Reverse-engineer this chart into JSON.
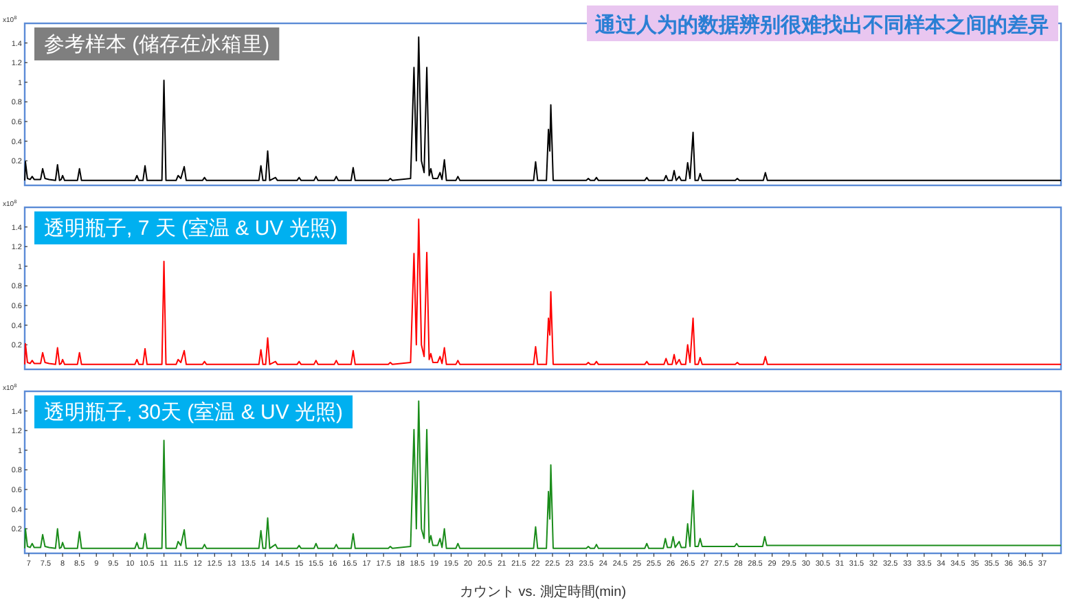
{
  "chart_data": [
    {
      "type": "line",
      "title": "参考样本 (储存在冰箱里)",
      "ylabel": "x10$^{8}$",
      "annotations": [
        "通过人为的数据辨别很难找出不同样本之间的差异"
      ],
      "xlim": [
        6.88,
        37.55
      ],
      "ylim": [
        -0.05,
        1.6
      ],
      "yticks": [
        0.2,
        0.4,
        0.6,
        0.8,
        1,
        1.2,
        1.4
      ],
      "tick_labels": "y",
      "grid": false,
      "series": [
        {
          "color": "#000000",
          "x": [
            6.88,
            6.9,
            6.96,
            7.04,
            7.1,
            7.16,
            7.35,
            7.41,
            7.48,
            7.6,
            7.79,
            7.85,
            7.91,
            7.96,
            8.0,
            8.06,
            8.44,
            8.5,
            8.56,
            10.14,
            10.2,
            10.26,
            10.38,
            10.44,
            10.5,
            10.94,
            11.0,
            11.06,
            11.36,
            11.42,
            11.5,
            11.6,
            11.66,
            12.14,
            12.2,
            12.26,
            13.81,
            13.87,
            13.93,
            14.01,
            14.07,
            14.13,
            14.3,
            14.36,
            14.94,
            15.0,
            15.06,
            15.44,
            15.5,
            15.56,
            16.04,
            16.1,
            16.16,
            16.54,
            16.6,
            16.66,
            17.64,
            17.7,
            17.76,
            18.3,
            18.4,
            18.47,
            18.54,
            18.62,
            18.7,
            18.78,
            18.85,
            18.9,
            18.96,
            19.1,
            19.17,
            19.23,
            19.3,
            19.36,
            19.64,
            19.7,
            19.76,
            21.94,
            22.0,
            22.06,
            22.32,
            22.38,
            22.42,
            22.45,
            22.52,
            23.5,
            23.56,
            23.62,
            23.74,
            23.8,
            23.86,
            25.23,
            25.29,
            25.35,
            25.8,
            25.86,
            25.92,
            26.04,
            26.1,
            26.16,
            26.25,
            26.31,
            26.44,
            26.5,
            26.57,
            26.66,
            26.72,
            26.81,
            26.87,
            26.93,
            27.91,
            27.97,
            28.03,
            28.74,
            28.8,
            28.86,
            37.55
          ],
          "values": [
            0,
            0.19,
            0.02,
            0.01,
            0.04,
            0.01,
            0.01,
            0.12,
            0.02,
            0.01,
            0,
            0.16,
            0,
            0.01,
            0.05,
            0,
            0,
            0.12,
            0,
            0,
            0.05,
            0,
            0,
            0.15,
            0,
            0,
            1.02,
            0,
            0,
            0.05,
            0.02,
            0.14,
            0,
            0,
            0.03,
            0,
            0,
            0.15,
            0,
            0,
            0.3,
            0,
            0.03,
            0,
            0,
            0.03,
            0,
            0,
            0.04,
            0,
            0,
            0.04,
            0,
            0,
            0.13,
            0,
            0,
            0.02,
            0,
            0.02,
            1.15,
            0.2,
            1.46,
            0.2,
            0.08,
            1.15,
            0.05,
            0.12,
            0.02,
            0.02,
            0.08,
            0.01,
            0.21,
            0,
            0,
            0.04,
            0,
            0,
            0.19,
            0,
            0,
            0.52,
            0.3,
            0.77,
            0,
            0,
            0.02,
            0,
            0,
            0.03,
            0,
            0,
            0.03,
            0,
            0,
            0.05,
            0,
            0,
            0.1,
            0,
            0.04,
            0,
            0,
            0.18,
            0.02,
            0.49,
            0,
            0,
            0.07,
            0,
            0,
            0.02,
            0,
            0,
            0.08,
            0,
            0
          ]
        }
      ]
    },
    {
      "type": "line",
      "title": "透明瓶子, 7 天 (室温 & UV 光照)",
      "ylabel": "x10$^{8}$",
      "xlim": [
        6.88,
        37.55
      ],
      "ylim": [
        -0.05,
        1.6
      ],
      "yticks": [
        0.2,
        0.4,
        0.6,
        0.8,
        1,
        1.2,
        1.4
      ],
      "tick_labels": "y",
      "grid": false,
      "series": [
        {
          "color": "#ff0000",
          "x": [
            6.88,
            6.9,
            6.96,
            7.04,
            7.1,
            7.16,
            7.35,
            7.41,
            7.48,
            7.6,
            7.79,
            7.85,
            7.91,
            7.96,
            8.0,
            8.06,
            8.44,
            8.5,
            8.56,
            10.14,
            10.2,
            10.26,
            10.38,
            10.44,
            10.5,
            10.94,
            11.0,
            11.06,
            11.36,
            11.42,
            11.5,
            11.6,
            11.66,
            12.14,
            12.2,
            12.26,
            13.81,
            13.87,
            13.93,
            14.01,
            14.07,
            14.13,
            14.3,
            14.36,
            14.94,
            15.0,
            15.06,
            15.44,
            15.5,
            15.56,
            16.04,
            16.1,
            16.16,
            16.54,
            16.6,
            16.66,
            17.64,
            17.7,
            17.76,
            18.3,
            18.4,
            18.47,
            18.54,
            18.62,
            18.7,
            18.78,
            18.85,
            18.9,
            18.96,
            19.1,
            19.17,
            19.23,
            19.3,
            19.36,
            19.64,
            19.7,
            19.76,
            21.94,
            22.0,
            22.06,
            22.32,
            22.38,
            22.42,
            22.45,
            22.52,
            23.5,
            23.56,
            23.62,
            23.74,
            23.8,
            23.86,
            25.23,
            25.29,
            25.35,
            25.8,
            25.86,
            25.92,
            26.04,
            26.1,
            26.16,
            26.25,
            26.31,
            26.44,
            26.5,
            26.57,
            26.66,
            26.72,
            26.81,
            26.87,
            26.93,
            27.91,
            27.97,
            28.03,
            28.74,
            28.8,
            28.86,
            37.55
          ],
          "values": [
            0,
            0.21,
            0.02,
            0.01,
            0.04,
            0.01,
            0.01,
            0.12,
            0.02,
            0.01,
            0,
            0.17,
            0,
            0.01,
            0.05,
            0,
            0,
            0.12,
            0,
            0,
            0.05,
            0,
            0,
            0.16,
            0,
            0,
            1.05,
            0,
            0,
            0.05,
            0.02,
            0.14,
            0,
            0,
            0.03,
            0,
            0,
            0.15,
            0,
            0,
            0.27,
            0,
            0.03,
            0,
            0,
            0.03,
            0,
            0,
            0.04,
            0,
            0,
            0.04,
            0,
            0,
            0.14,
            0,
            0,
            0.02,
            0,
            0.02,
            1.13,
            0.2,
            1.48,
            0.2,
            0.08,
            1.14,
            0.05,
            0.11,
            0.02,
            0.02,
            0.08,
            0.01,
            0.17,
            0,
            0,
            0.04,
            0,
            0,
            0.18,
            0,
            0,
            0.47,
            0.3,
            0.74,
            0,
            0,
            0.02,
            0,
            0,
            0.03,
            0,
            0,
            0.03,
            0,
            0,
            0.06,
            0,
            0,
            0.1,
            0,
            0.05,
            0,
            0,
            0.2,
            0.02,
            0.47,
            0,
            0,
            0.07,
            0,
            0,
            0.02,
            0,
            0,
            0.08,
            0,
            0
          ]
        }
      ]
    },
    {
      "type": "line",
      "title": "透明瓶子, 30天 (室温 & UV 光照)",
      "ylabel": "x10$^{8}$",
      "xlabel": "カウント vs. 測定時間(min)",
      "xlim": [
        6.88,
        37.55
      ],
      "ylim": [
        -0.05,
        1.6
      ],
      "yticks": [
        0.2,
        0.4,
        0.6,
        0.8,
        1,
        1.2,
        1.4
      ],
      "xticks": [
        7,
        7.5,
        8,
        8.5,
        9,
        9.5,
        10,
        10.5,
        11,
        11.5,
        12,
        12.5,
        13,
        13.5,
        14,
        14.5,
        15,
        15.5,
        16,
        16.5,
        17,
        17.5,
        18,
        18.5,
        19,
        19.5,
        20,
        20.5,
        21,
        21.5,
        22,
        22.5,
        23,
        23.5,
        24,
        24.5,
        25,
        25.5,
        26,
        26.5,
        27,
        27.5,
        28,
        28.5,
        29,
        29.5,
        30,
        30.5,
        31,
        31.5,
        32,
        32.5,
        33,
        33.5,
        34,
        34.5,
        35,
        35.5,
        36,
        36.5,
        37
      ],
      "grid": false,
      "series": [
        {
          "color": "#1a8c1a",
          "x": [
            6.88,
            6.9,
            6.96,
            7.04,
            7.1,
            7.16,
            7.35,
            7.41,
            7.48,
            7.6,
            7.79,
            7.85,
            7.91,
            7.96,
            8.0,
            8.06,
            8.44,
            8.5,
            8.56,
            10.14,
            10.2,
            10.26,
            10.38,
            10.44,
            10.5,
            10.94,
            11.0,
            11.06,
            11.36,
            11.42,
            11.5,
            11.6,
            11.66,
            12.14,
            12.2,
            12.26,
            13.81,
            13.87,
            13.93,
            14.01,
            14.07,
            14.13,
            14.3,
            14.36,
            14.94,
            15.0,
            15.06,
            15.44,
            15.5,
            15.56,
            16.04,
            16.1,
            16.16,
            16.54,
            16.6,
            16.66,
            17.64,
            17.7,
            17.76,
            18.3,
            18.4,
            18.47,
            18.54,
            18.62,
            18.7,
            18.78,
            18.85,
            18.9,
            18.96,
            19.1,
            19.17,
            19.23,
            19.3,
            19.36,
            19.64,
            19.7,
            19.76,
            21.94,
            22.0,
            22.06,
            22.32,
            22.38,
            22.42,
            22.45,
            22.52,
            23.5,
            23.56,
            23.62,
            23.74,
            23.8,
            23.86,
            25.23,
            25.29,
            25.35,
            25.78,
            25.84,
            25.9,
            26.01,
            26.07,
            26.13,
            26.25,
            26.31,
            26.44,
            26.5,
            26.57,
            26.66,
            26.72,
            26.81,
            26.87,
            26.93,
            27.6,
            27.89,
            27.95,
            28.01,
            28.72,
            28.78,
            28.84,
            29.5,
            37.55
          ],
          "values": [
            0,
            0.2,
            0.02,
            0.01,
            0.05,
            0.01,
            0.01,
            0.14,
            0.02,
            0.01,
            0,
            0.2,
            0,
            0.01,
            0.06,
            0,
            0,
            0.17,
            0,
            0,
            0.06,
            0,
            0,
            0.15,
            0,
            0,
            1.1,
            0,
            0,
            0.07,
            0.03,
            0.19,
            0,
            0,
            0.04,
            0,
            0,
            0.18,
            0,
            0,
            0.31,
            0,
            0.04,
            0,
            0,
            0.03,
            0,
            0,
            0.05,
            0,
            0,
            0.04,
            0,
            0,
            0.15,
            0,
            0,
            0.02,
            0,
            0.02,
            1.21,
            0.2,
            1.5,
            0.2,
            0.1,
            1.21,
            0.06,
            0.13,
            0.03,
            0.03,
            0.1,
            0.01,
            0.2,
            0,
            0,
            0.05,
            0,
            0,
            0.22,
            0,
            0,
            0.58,
            0.3,
            0.85,
            0,
            0,
            0.02,
            0,
            0,
            0.04,
            0,
            0,
            0.05,
            0,
            0,
            0.1,
            0.01,
            0.01,
            0.12,
            0.01,
            0.07,
            0.01,
            0.01,
            0.25,
            0.02,
            0.59,
            0.02,
            0.02,
            0.1,
            0.02,
            0.02,
            0.02,
            0.05,
            0.02,
            0.02,
            0.12,
            0.03,
            0.03,
            0.03
          ]
        }
      ]
    }
  ]
}
